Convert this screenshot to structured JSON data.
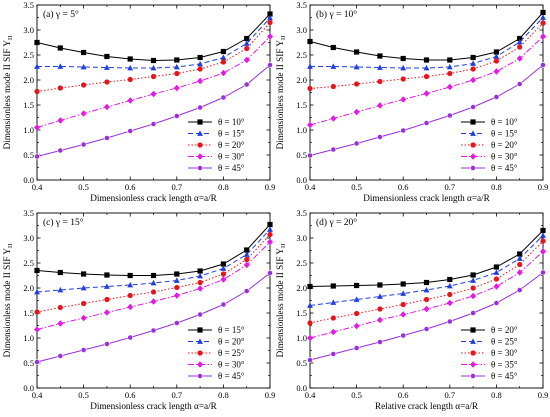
{
  "chart_data": [
    {
      "type": "line",
      "panel_label": "(a) γ = 5°",
      "xlabel": "Dimensionless crack length α=a/R",
      "ylabel": "Dimensionless mode II SIF Y",
      "ylabel_sub": "II",
      "xlim": [
        0.4,
        0.9
      ],
      "ylim": [
        0.0,
        3.5
      ],
      "xticks": [
        "0.4",
        "0.5",
        "0.6",
        "0.7",
        "0.8",
        "0.9"
      ],
      "yticks": [
        "0.0",
        "0.5",
        "1.0",
        "1.5",
        "2.0",
        "2.5",
        "3.0",
        "3.5"
      ],
      "legend_position": "lower-right",
      "x": [
        0.4,
        0.45,
        0.5,
        0.55,
        0.6,
        0.65,
        0.7,
        0.75,
        0.8,
        0.85,
        0.9
      ],
      "series": [
        {
          "name": "θ = 10°",
          "color": "#000000",
          "marker": "square",
          "dash": "solid",
          "values": [
            2.75,
            2.64,
            2.55,
            2.47,
            2.42,
            2.39,
            2.4,
            2.45,
            2.57,
            2.83,
            3.32
          ]
        },
        {
          "name": "θ = 15°",
          "color": "#1f3fe0",
          "marker": "triangle",
          "dash": "dash",
          "values": [
            2.27,
            2.27,
            2.26,
            2.25,
            2.24,
            2.24,
            2.26,
            2.32,
            2.45,
            2.73,
            3.24
          ]
        },
        {
          "name": "θ = 20°",
          "color": "#e8141b",
          "marker": "circle",
          "dash": "dot",
          "values": [
            1.77,
            1.84,
            1.9,
            1.96,
            2.01,
            2.07,
            2.13,
            2.22,
            2.36,
            2.63,
            3.15
          ]
        },
        {
          "name": "θ = 30°",
          "color": "#e518e5",
          "marker": "diamond",
          "dash": "dashdot",
          "values": [
            1.05,
            1.19,
            1.33,
            1.46,
            1.59,
            1.72,
            1.84,
            1.98,
            2.14,
            2.4,
            2.87
          ]
        },
        {
          "name": "θ = 45°",
          "color": "#9a2fe0",
          "marker": "circle-open",
          "dash": "solid",
          "values": [
            0.47,
            0.59,
            0.71,
            0.84,
            0.98,
            1.12,
            1.28,
            1.45,
            1.65,
            1.91,
            2.3
          ]
        }
      ]
    },
    {
      "type": "line",
      "panel_label": "(b) γ = 10°",
      "xlabel": "Dimensionless crack length α=a/R",
      "ylabel": "Dimensionless mode II SIF Y",
      "ylabel_sub": "II",
      "xlim": [
        0.4,
        0.9
      ],
      "ylim": [
        0.0,
        3.5
      ],
      "xticks": [
        "0.4",
        "0.5",
        "0.6",
        "0.7",
        "0.8",
        "0.9"
      ],
      "yticks": [
        "0.0",
        "0.5",
        "1.0",
        "1.5",
        "2.0",
        "2.5",
        "3.0",
        "3.5"
      ],
      "legend_position": "lower-right",
      "x": [
        0.4,
        0.45,
        0.5,
        0.55,
        0.6,
        0.65,
        0.7,
        0.75,
        0.8,
        0.85,
        0.9
      ],
      "series": [
        {
          "name": "θ = 10°",
          "color": "#000000",
          "marker": "square",
          "dash": "solid",
          "values": [
            2.77,
            2.65,
            2.56,
            2.48,
            2.43,
            2.4,
            2.4,
            2.45,
            2.56,
            2.83,
            3.35
          ]
        },
        {
          "name": "θ = 15°",
          "color": "#1f3fe0",
          "marker": "triangle",
          "dash": "dash",
          "values": [
            2.27,
            2.27,
            2.26,
            2.25,
            2.24,
            2.24,
            2.26,
            2.33,
            2.47,
            2.76,
            3.25
          ]
        },
        {
          "name": "θ = 20°",
          "color": "#e8141b",
          "marker": "circle",
          "dash": "dot",
          "values": [
            1.83,
            1.87,
            1.92,
            1.97,
            2.02,
            2.07,
            2.13,
            2.22,
            2.38,
            2.66,
            3.14
          ]
        },
        {
          "name": "θ = 30°",
          "color": "#e518e5",
          "marker": "diamond",
          "dash": "dashdot",
          "values": [
            1.1,
            1.23,
            1.36,
            1.49,
            1.61,
            1.73,
            1.86,
            2.0,
            2.17,
            2.43,
            2.87
          ]
        },
        {
          "name": "θ = 45°",
          "color": "#9a2fe0",
          "marker": "circle-open",
          "dash": "solid",
          "values": [
            0.49,
            0.61,
            0.73,
            0.86,
            0.99,
            1.14,
            1.29,
            1.46,
            1.66,
            1.92,
            2.3
          ]
        }
      ]
    },
    {
      "type": "line",
      "panel_label": "(c) γ = 15°",
      "xlabel": "Dimensionless crack length α=a/R",
      "ylabel": "Dimensionless mode II SIF Y",
      "ylabel_sub": "II",
      "xlim": [
        0.4,
        0.9
      ],
      "ylim": [
        0.0,
        3.5
      ],
      "xticks": [
        "0.4",
        "0.5",
        "0.6",
        "0.7",
        "0.8",
        "0.9"
      ],
      "yticks": [
        "0.0",
        "0.5",
        "1.0",
        "1.5",
        "2.0",
        "2.5",
        "3.0",
        "3.5"
      ],
      "legend_position": "lower-right",
      "x": [
        0.4,
        0.45,
        0.5,
        0.55,
        0.6,
        0.65,
        0.7,
        0.75,
        0.8,
        0.85,
        0.9
      ],
      "series": [
        {
          "name": "θ = 15°",
          "color": "#000000",
          "marker": "square",
          "dash": "solid",
          "values": [
            2.35,
            2.31,
            2.28,
            2.26,
            2.25,
            2.25,
            2.28,
            2.34,
            2.48,
            2.76,
            3.27
          ]
        },
        {
          "name": "θ = 20°",
          "color": "#1f3fe0",
          "marker": "triangle",
          "dash": "dash",
          "values": [
            1.92,
            1.96,
            2.0,
            2.03,
            2.06,
            2.1,
            2.15,
            2.24,
            2.39,
            2.67,
            3.17
          ]
        },
        {
          "name": "θ = 25°",
          "color": "#e8141b",
          "marker": "circle",
          "dash": "dot",
          "values": [
            1.52,
            1.61,
            1.69,
            1.77,
            1.85,
            1.92,
            2.01,
            2.11,
            2.28,
            2.57,
            3.07
          ]
        },
        {
          "name": "θ = 30°",
          "color": "#e518e5",
          "marker": "diamond",
          "dash": "dashdot",
          "values": [
            1.17,
            1.29,
            1.4,
            1.51,
            1.62,
            1.73,
            1.85,
            1.99,
            2.17,
            2.46,
            2.92
          ]
        },
        {
          "name": "θ = 45°",
          "color": "#9a2fe0",
          "marker": "circle-open",
          "dash": "solid",
          "values": [
            0.52,
            0.64,
            0.76,
            0.88,
            1.01,
            1.15,
            1.3,
            1.47,
            1.67,
            1.94,
            2.3
          ]
        }
      ]
    },
    {
      "type": "line",
      "panel_label": "(d) γ = 20°",
      "xlabel": "Relative crack length α=a/R",
      "ylabel": "Dimensionless mode II SIF Y",
      "ylabel_sub": "II",
      "xlim": [
        0.4,
        0.9
      ],
      "ylim": [
        0.0,
        3.5
      ],
      "xticks": [
        "0.4",
        "0.5",
        "0.6",
        "0.7",
        "0.8",
        "0.9"
      ],
      "yticks": [
        "0.0",
        "0.5",
        "1.0",
        "1.5",
        "2.0",
        "2.5",
        "3.0",
        "3.5"
      ],
      "legend_position": "lower-right",
      "x": [
        0.4,
        0.45,
        0.5,
        0.55,
        0.6,
        0.65,
        0.7,
        0.75,
        0.8,
        0.85,
        0.9
      ],
      "series": [
        {
          "name": "θ = 20°",
          "color": "#000000",
          "marker": "square",
          "dash": "solid",
          "values": [
            2.03,
            2.04,
            2.05,
            2.06,
            2.08,
            2.11,
            2.17,
            2.26,
            2.42,
            2.68,
            3.15
          ]
        },
        {
          "name": "θ = 25°",
          "color": "#1f3fe0",
          "marker": "triangle",
          "dash": "dash",
          "values": [
            1.65,
            1.71,
            1.77,
            1.83,
            1.89,
            1.96,
            2.04,
            2.15,
            2.31,
            2.59,
            3.05
          ]
        },
        {
          "name": "θ = 30°",
          "color": "#e8141b",
          "marker": "circle",
          "dash": "dot",
          "values": [
            1.3,
            1.4,
            1.49,
            1.58,
            1.67,
            1.77,
            1.87,
            2.0,
            2.18,
            2.47,
            2.94
          ]
        },
        {
          "name": "θ = 35°",
          "color": "#e518e5",
          "marker": "diamond",
          "dash": "dashdot",
          "values": [
            1.0,
            1.12,
            1.24,
            1.36,
            1.47,
            1.58,
            1.7,
            1.84,
            2.03,
            2.31,
            2.73
          ]
        },
        {
          "name": "θ = 45°",
          "color": "#9a2fe0",
          "marker": "circle-open",
          "dash": "solid",
          "values": [
            0.56,
            0.68,
            0.8,
            0.92,
            1.05,
            1.18,
            1.33,
            1.5,
            1.7,
            1.96,
            2.31
          ]
        }
      ]
    }
  ]
}
